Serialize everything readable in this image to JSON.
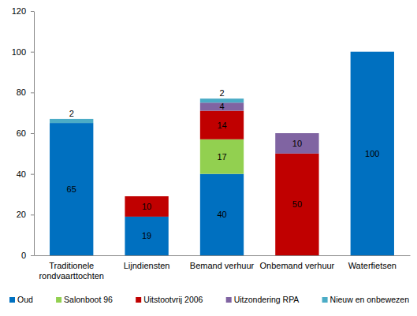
{
  "chart_data": {
    "type": "bar",
    "stacked": true,
    "data_labels": true,
    "grid": false,
    "legend": "bottom",
    "categories": [
      "Traditionele rondvaarttochten",
      "Lijndiensten",
      "Bemand verhuur",
      "Onbemand verhuur",
      "Waterfietsen"
    ],
    "series": [
      {
        "name": "Oud",
        "color": "#0070c0",
        "values": [
          65,
          19,
          40,
          null,
          100
        ]
      },
      {
        "name": "Salonboot 96",
        "color": "#92d050",
        "values": [
          null,
          null,
          17,
          null,
          null
        ]
      },
      {
        "name": "Uitstootvrij 2006",
        "color": "#c00000",
        "values": [
          null,
          10,
          14,
          50,
          null
        ]
      },
      {
        "name": "Uitzondering RPA",
        "color": "#8064a2",
        "values": [
          null,
          null,
          4,
          10,
          null
        ]
      },
      {
        "name": "Nieuw en onbewezen",
        "color": "#4bacc6",
        "values": [
          2,
          null,
          2,
          null,
          null
        ]
      }
    ],
    "ylim": [
      0,
      120
    ],
    "yticks": [
      0,
      20,
      40,
      60,
      80,
      100,
      120
    ]
  }
}
